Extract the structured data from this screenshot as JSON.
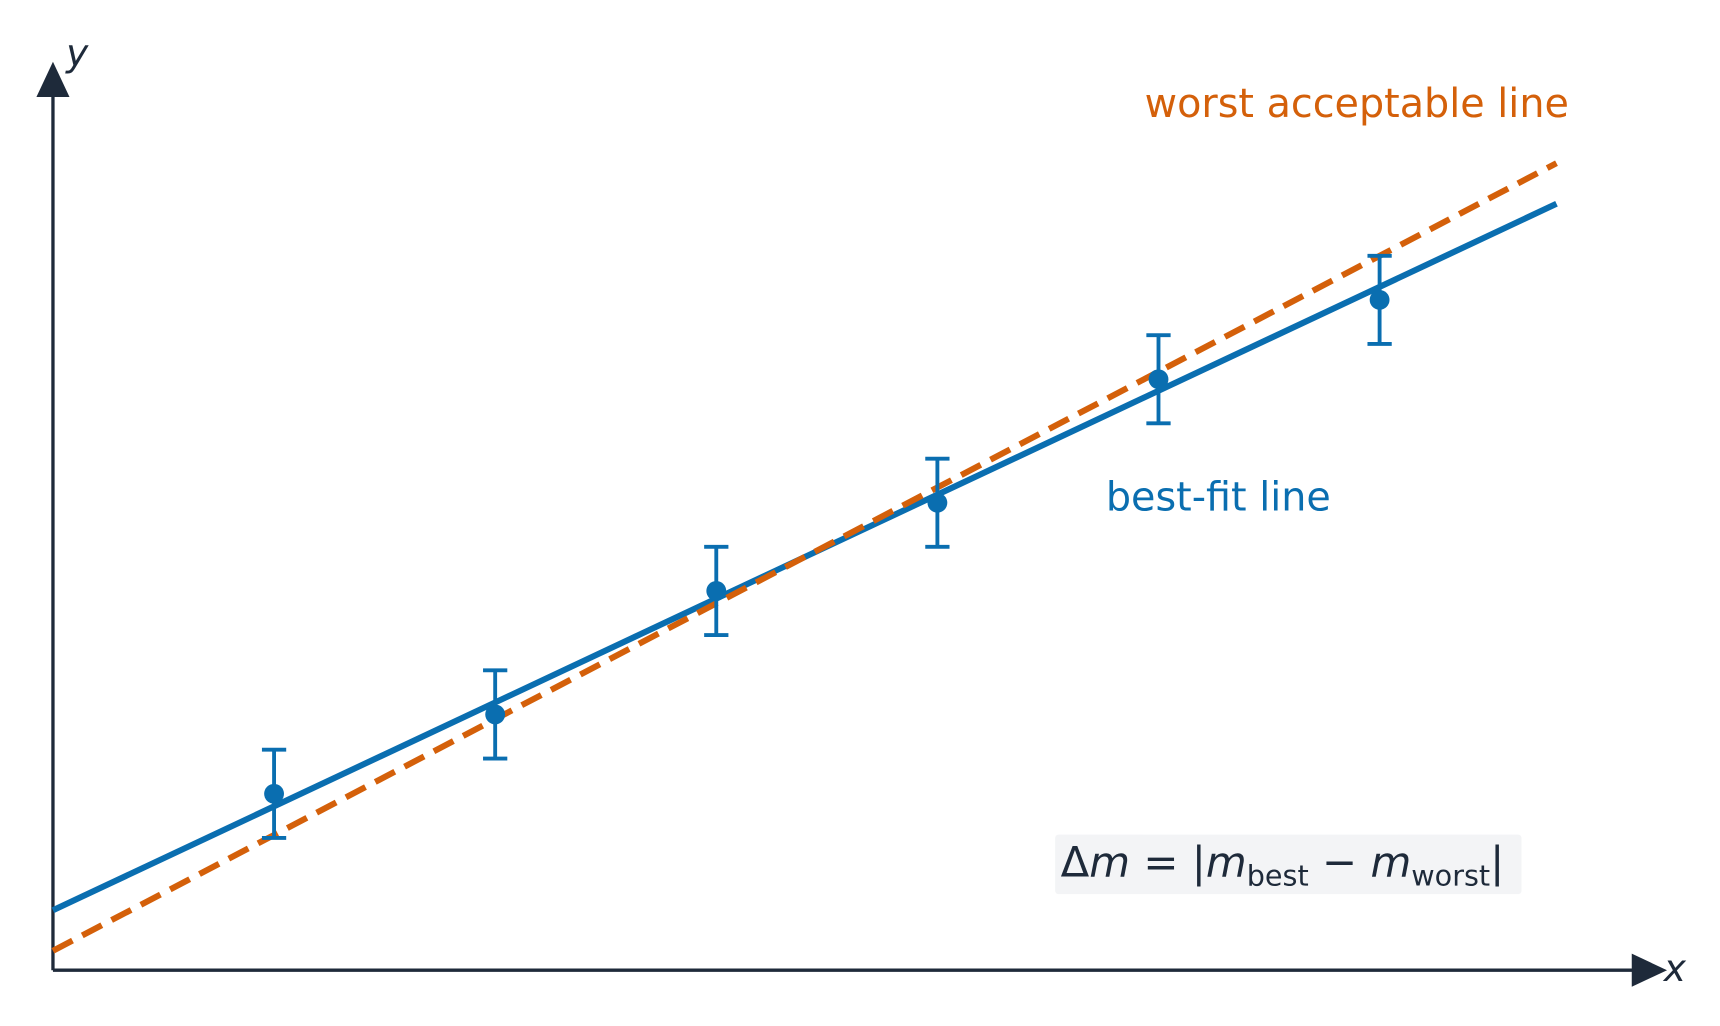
{
  "chart_data": {
    "type": "scatter",
    "x_label": "x",
    "y_label": "y",
    "x": [
      1,
      2,
      3,
      4,
      5,
      6
    ],
    "values": [
      2.0,
      2.9,
      4.3,
      5.3,
      6.7,
      7.6
    ],
    "errors": [
      0.5,
      0.5,
      0.5,
      0.5,
      0.5,
      0.5
    ],
    "color": "#0a6eb0",
    "xlim": [
      0,
      7.3
    ],
    "ylim": [
      0,
      10.3
    ],
    "lines": [
      {
        "name": "best-fit line",
        "color": "#0a6eb0",
        "dashed": false,
        "x": [
          0,
          6.8
        ],
        "values": [
          0.68,
          8.69
        ]
      },
      {
        "name": "worst acceptable line",
        "color": "#d4600a",
        "dashed": true,
        "x": [
          0,
          6.8
        ],
        "values": [
          0.22,
          9.15
        ]
      }
    ],
    "formula": [
      "Δ",
      "m",
      " = |",
      "m",
      "best",
      " − ",
      "m",
      "worst",
      "|"
    ]
  }
}
